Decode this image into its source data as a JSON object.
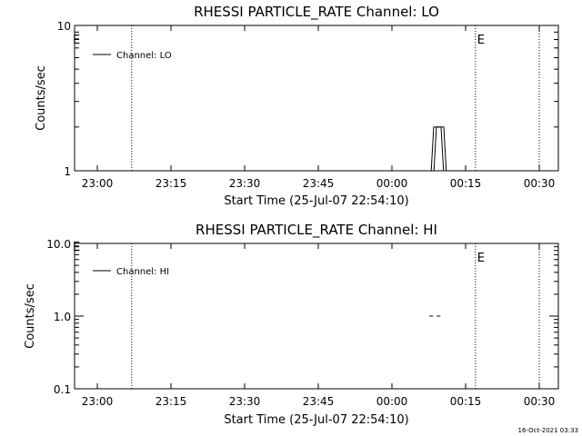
{
  "chart_data": [
    {
      "type": "line",
      "title": "RHESSI PARTICLE_RATE Channel: LO",
      "xlabel": "Start Time (25-Jul-07 22:54:10)",
      "ylabel": "Counts/sec",
      "y_scale": "log",
      "ylim": [
        1,
        10
      ],
      "x_tick_labels": [
        "23:00",
        "23:15",
        "23:30",
        "23:45",
        "00:00",
        "00:15",
        "00:30"
      ],
      "y_tick_labels": [
        "1",
        "10"
      ],
      "series": [
        {
          "name": "Channel: LO",
          "x": [
            "00:08",
            "00:08.5",
            "00:09",
            "00:09.5",
            "00:10",
            "00:10.5"
          ],
          "values": [
            1,
            2,
            2,
            2,
            2,
            1
          ]
        }
      ],
      "vlines": [
        {
          "time": "23:07",
          "style": "dotted",
          "label": ""
        },
        {
          "time": "00:17",
          "style": "dotted",
          "label": "E"
        },
        {
          "time": "00:30",
          "style": "dotted",
          "label": ""
        }
      ],
      "left_marker": "E",
      "legend_position": "top-left",
      "grid": false
    },
    {
      "type": "line",
      "title": "RHESSI PARTICLE_RATE Channel: HI",
      "xlabel": "Start Time (25-Jul-07 22:54:10)",
      "ylabel": "Counts/sec",
      "y_scale": "log",
      "ylim": [
        0.1,
        10
      ],
      "x_tick_labels": [
        "23:00",
        "23:15",
        "23:30",
        "23:45",
        "00:00",
        "00:15",
        "00:30"
      ],
      "y_tick_labels": [
        "0.1",
        "1.0",
        "10.0"
      ],
      "series": [
        {
          "name": "Channel: HI",
          "x": [
            "00:08",
            "00:09.5"
          ],
          "values": [
            1,
            1
          ]
        }
      ],
      "vlines": [
        {
          "time": "23:07",
          "style": "dotted",
          "label": ""
        },
        {
          "time": "00:17",
          "style": "dotted",
          "label": "E"
        },
        {
          "time": "00:30",
          "style": "dotted",
          "label": ""
        }
      ],
      "left_marker": "E",
      "legend_position": "top-left",
      "grid": false
    }
  ],
  "footer": {
    "timestamp": "16-Oct-2021 03:33"
  }
}
